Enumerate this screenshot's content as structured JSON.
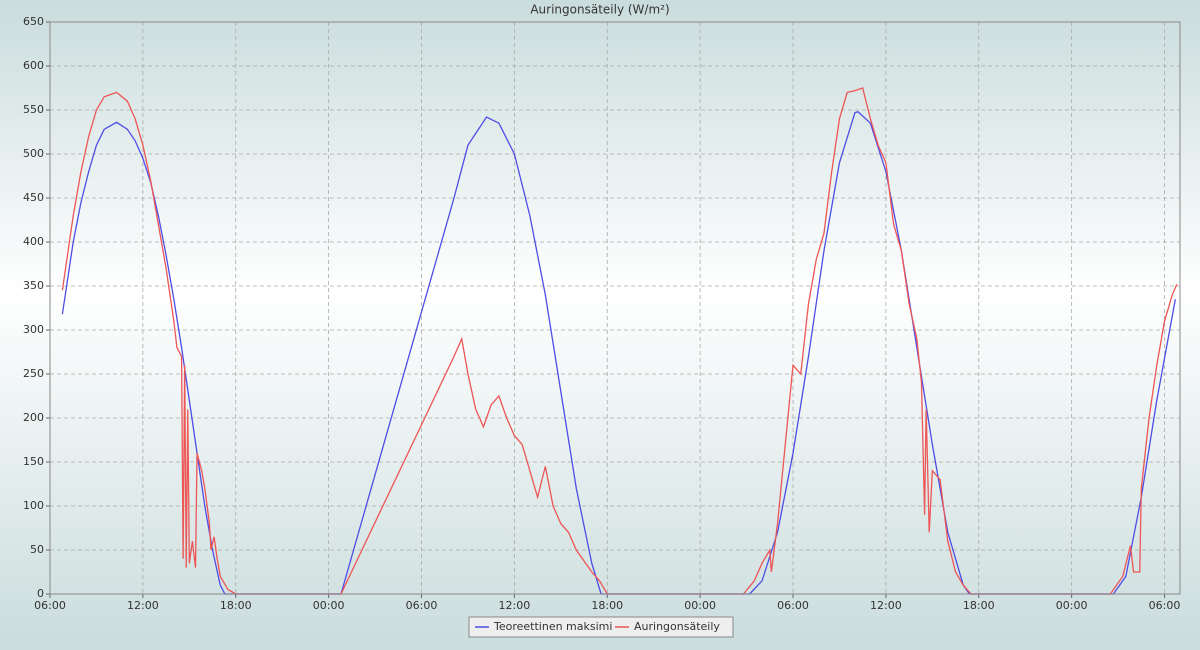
{
  "chart_data": {
    "type": "line",
    "title": "Auringonsäteily (W/m²)",
    "xlim": [
      0,
      73
    ],
    "xticks": [
      {
        "value": 0,
        "label": "06:00"
      },
      {
        "value": 6,
        "label": "12:00"
      },
      {
        "value": 12,
        "label": "18:00"
      },
      {
        "value": 18,
        "label": "00:00"
      },
      {
        "value": 24,
        "label": "06:00"
      },
      {
        "value": 30,
        "label": "12:00"
      },
      {
        "value": 36,
        "label": "18:00"
      },
      {
        "value": 42,
        "label": "00:00"
      },
      {
        "value": 48,
        "label": "06:00"
      },
      {
        "value": 54,
        "label": "12:00"
      },
      {
        "value": 60,
        "label": "18:00"
      },
      {
        "value": 66,
        "label": "00:00"
      },
      {
        "value": 72,
        "label": "06:00"
      }
    ],
    "ylim": [
      0,
      650
    ],
    "yticks": [
      0,
      50,
      100,
      150,
      200,
      250,
      300,
      350,
      400,
      450,
      500,
      550,
      600,
      650
    ],
    "grid": true,
    "legend": "bottom",
    "series": [
      {
        "name": "Teoreettinen maksimi",
        "color": "#4d4de6",
        "x": [
          0.8,
          1.5,
          2,
          2.5,
          3,
          3.5,
          4.3,
          5,
          5.5,
          6,
          6.5,
          7,
          7.5,
          8,
          8.5,
          9,
          9.5,
          10,
          10.5,
          11,
          11.3,
          18.8,
          26.1,
          27,
          28.2,
          29,
          30,
          31,
          32,
          33,
          34,
          35,
          35.6,
          45.2,
          46,
          47,
          48,
          49,
          50,
          51,
          52,
          52.2,
          53,
          54,
          55,
          56,
          57,
          58,
          59,
          59.4,
          68.7,
          69.5,
          70.5,
          71.5,
          72.7
        ],
        "values": [
          318,
          400,
          445,
          480,
          510,
          528,
          536,
          528,
          515,
          495,
          468,
          430,
          385,
          335,
          280,
          220,
          160,
          100,
          50,
          10,
          0,
          0,
          450,
          510,
          542,
          535,
          500,
          430,
          340,
          230,
          120,
          35,
          0,
          0,
          15,
          70,
          160,
          270,
          390,
          490,
          547,
          548,
          535,
          480,
          390,
          280,
          170,
          70,
          10,
          0,
          0,
          20,
          110,
          220,
          335
        ]
      },
      {
        "name": "Auringonsäteily",
        "color": "#ee5555",
        "x": [
          0.8,
          1.5,
          2,
          2.5,
          3,
          3.5,
          4.3,
          5,
          5.5,
          6,
          6.5,
          7,
          7.5,
          8,
          8.2,
          8.5,
          8.6,
          8.7,
          8.8,
          8.9,
          9,
          9.2,
          9.4,
          9.5,
          9.8,
          10,
          10.3,
          10.4,
          10.6,
          10.8,
          11,
          11.5,
          12,
          18.8,
          26.1,
          26.6,
          27,
          27.5,
          28,
          28.5,
          29,
          29.5,
          30,
          30.5,
          31,
          31.5,
          32,
          32.5,
          33,
          33.5,
          34,
          35,
          35.5,
          36,
          44.8,
          45.5,
          46,
          46.5,
          46.6,
          47,
          47.5,
          48,
          48.5,
          49,
          49.5,
          50,
          50.5,
          51,
          51.5,
          52,
          52.5,
          53,
          53.5,
          54,
          54.5,
          55,
          55.5,
          56,
          56.3,
          56.5,
          56.6,
          56.8,
          57,
          57.5,
          58,
          58.5,
          59,
          59.5,
          68.5,
          69.3,
          69.8,
          70,
          70.4,
          70.5,
          71,
          71.5,
          72,
          72.5,
          72.8
        ],
        "values": [
          345,
          430,
          480,
          520,
          550,
          565,
          570,
          560,
          540,
          510,
          470,
          420,
          370,
          310,
          280,
          270,
          40,
          260,
          30,
          210,
          35,
          60,
          30,
          160,
          140,
          120,
          80,
          50,
          65,
          40,
          20,
          5,
          0,
          0,
          270,
          290,
          250,
          210,
          190,
          215,
          225,
          200,
          180,
          170,
          140,
          110,
          145,
          100,
          80,
          70,
          50,
          25,
          15,
          0,
          0,
          15,
          35,
          50,
          25,
          80,
          170,
          260,
          250,
          330,
          380,
          410,
          480,
          540,
          570,
          572,
          575,
          540,
          510,
          490,
          420,
          390,
          330,
          290,
          240,
          90,
          210,
          70,
          140,
          130,
          60,
          25,
          10,
          0,
          0,
          20,
          55,
          25,
          25,
          120,
          200,
          260,
          310,
          340,
          352
        ]
      }
    ]
  }
}
